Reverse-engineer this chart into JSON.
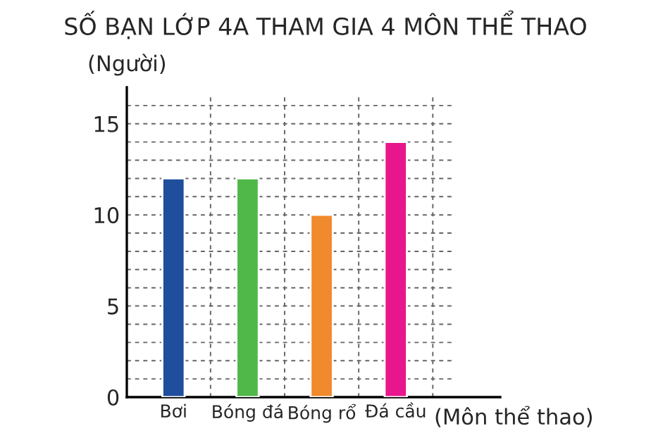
{
  "chart_data": {
    "type": "bar",
    "title": "SỐ BẠN LỚP 4A THAM GIA 4 MÔN THỂ THAO",
    "xlabel": "(Môn thể thao)",
    "ylabel": "(Người)",
    "categories": [
      "Bơi",
      "Bóng đá",
      "Bóng rổ",
      "Đá cầu"
    ],
    "values": [
      12,
      12,
      10,
      14
    ],
    "colors": [
      "#1f4e9c",
      "#4fb848",
      "#f08a2c",
      "#e8168c"
    ],
    "ylim": [
      0,
      17
    ],
    "yticks": [
      0,
      {
        "value": 1,
        "label": null
      },
      {
        "value": 2,
        "label": null
      },
      {
        "value": 3,
        "label": null
      },
      {
        "value": 4,
        "label": null
      },
      5,
      {
        "value": 6,
        "label": null
      },
      {
        "value": 7,
        "label": null
      },
      {
        "value": 8,
        "label": null
      },
      {
        "value": 9,
        "label": null
      },
      10,
      {
        "value": 11,
        "label": null
      },
      {
        "value": 12,
        "label": null
      },
      {
        "value": 13,
        "label": null
      },
      {
        "value": 14,
        "label": null
      },
      15,
      {
        "value": 16,
        "label": null
      }
    ],
    "grid": true
  }
}
